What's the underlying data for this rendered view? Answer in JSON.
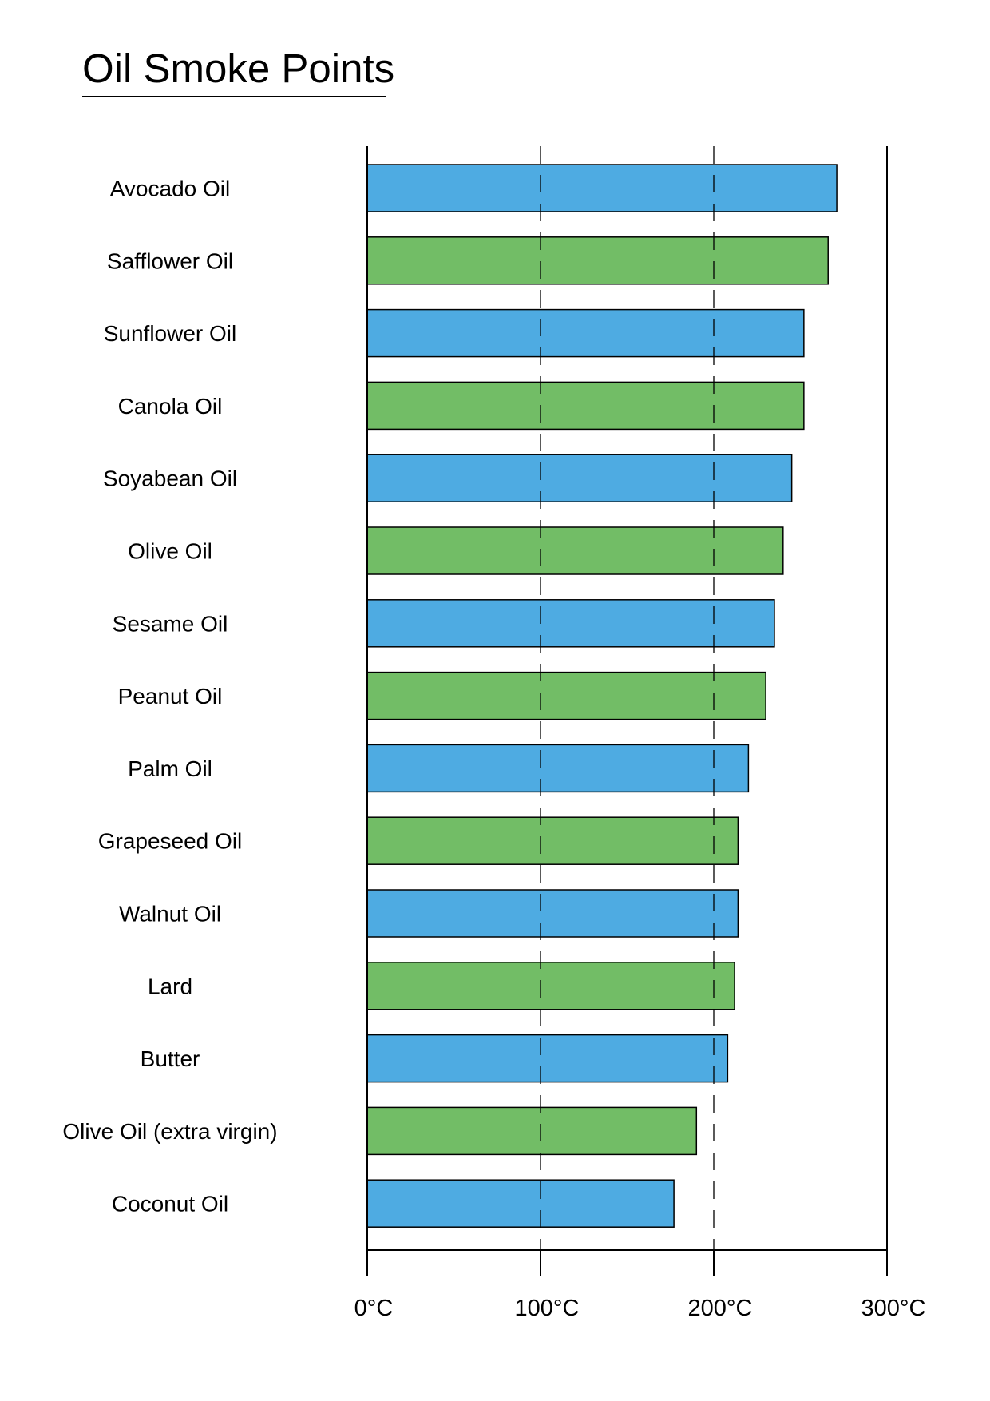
{
  "title": "Oil Smoke Points",
  "colors": {
    "series_a": "#4eabe2",
    "series_b": "#72bd66",
    "axis": "#000000"
  },
  "chart_data": {
    "type": "bar",
    "orientation": "horizontal",
    "title": "Oil Smoke Points",
    "categories": [
      "Avocado Oil",
      "Safflower Oil",
      "Sunflower Oil",
      "Canola Oil",
      "Soyabean Oil",
      "Olive Oil",
      "Sesame Oil",
      "Peanut Oil",
      "Palm Oil",
      "Grapeseed Oil",
      "Walnut Oil",
      "Lard",
      "Butter",
      "Olive Oil (extra virgin)",
      "Coconut Oil"
    ],
    "values": [
      271,
      266,
      252,
      252,
      245,
      240,
      235,
      230,
      220,
      214,
      214,
      212,
      208,
      190,
      177
    ],
    "xlim": [
      0,
      300
    ],
    "xticks": [
      0,
      100,
      200,
      300
    ],
    "xtick_labels": [
      "0°C",
      "100°C",
      "200°C",
      "300°C"
    ],
    "xlabel": "",
    "ylabel": "",
    "grid": "dashed vertical lines at 100°C and 200°C",
    "legend": "none",
    "bar_colors": "alternating blue and green"
  }
}
